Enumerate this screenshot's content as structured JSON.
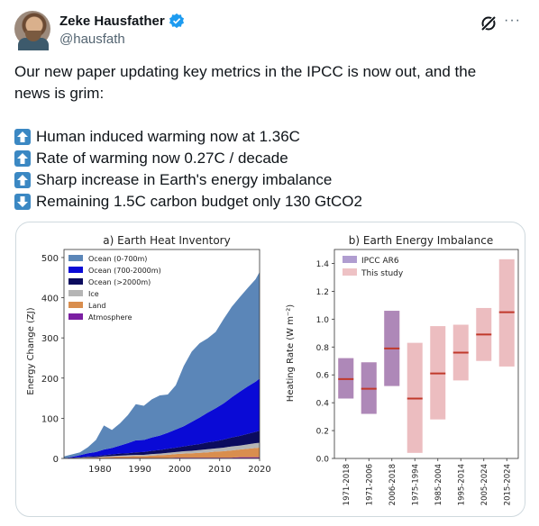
{
  "author": {
    "name": "Zeke Hausfather",
    "handle": "@hausfath"
  },
  "icons": {
    "verified": "verified-badge-icon",
    "grok": "grok-icon",
    "more": "more-icon",
    "up": "up-arrow-icon",
    "down": "down-arrow-icon"
  },
  "tweet": {
    "intro_1": "Our new paper updating key metrics in the IPCC is now out, and the",
    "intro_2": "news is grim:",
    "bullets": [
      {
        "dir": "up",
        "text": "Human induced warming now at 1.36C"
      },
      {
        "dir": "up",
        "text": "Rate of warming now 0.27C / decade"
      },
      {
        "dir": "up",
        "text": "Sharp increase in Earth's energy imbalance"
      },
      {
        "dir": "down",
        "text": "Remaining 1.5C carbon budget only 130 GtCO2"
      }
    ]
  },
  "colors": {
    "blue_accent": "#1d9bf0",
    "arrow_blue": "#3b88c3",
    "ar6": "#7c5cb0",
    "this_study": "#e29a9e",
    "median": "#c0392b"
  },
  "chart_data": [
    {
      "type": "area",
      "title": "a) Earth Heat Inventory",
      "ylabel": "Energy Change (ZJ)",
      "xlabel": "",
      "xlim": [
        1971,
        2020
      ],
      "ylim": [
        0,
        520
      ],
      "xticks": [
        1980,
        1990,
        2000,
        2010,
        2020
      ],
      "yticks": [
        0,
        100,
        200,
        300,
        400,
        500
      ],
      "legend_position": "top-left",
      "x": [
        1971,
        1973,
        1975,
        1977,
        1979,
        1981,
        1983,
        1985,
        1987,
        1989,
        1991,
        1993,
        1995,
        1997,
        1999,
        2001,
        2003,
        2005,
        2007,
        2009,
        2011,
        2013,
        2015,
        2017,
        2019,
        2020
      ],
      "series": [
        {
          "name": "Atmosphere",
          "color": "#7b1fa2",
          "values": [
            0,
            0,
            0,
            0,
            0,
            0,
            1,
            1,
            1,
            1,
            1,
            1,
            1,
            1,
            2,
            2,
            2,
            2,
            2,
            2,
            2,
            2,
            3,
            3,
            3,
            3
          ]
        },
        {
          "name": "Land",
          "color": "#d98e4e",
          "values": [
            0,
            1,
            1,
            2,
            2,
            3,
            3,
            4,
            4,
            5,
            5,
            6,
            7,
            8,
            9,
            10,
            11,
            12,
            13,
            15,
            16,
            18,
            19,
            21,
            23,
            24
          ]
        },
        {
          "name": "Ice",
          "color": "#b5b5b5",
          "values": [
            0,
            0,
            1,
            1,
            1,
            2,
            2,
            2,
            3,
            3,
            3,
            4,
            4,
            5,
            5,
            6,
            6,
            7,
            8,
            8,
            9,
            10,
            10,
            11,
            12,
            12
          ]
        },
        {
          "name": "Ocean (>2000m)",
          "color": "#0b0b5e",
          "values": [
            0,
            1,
            1,
            2,
            3,
            3,
            4,
            5,
            5,
            6,
            7,
            8,
            9,
            10,
            11,
            12,
            14,
            15,
            17,
            18,
            20,
            22,
            24,
            26,
            28,
            30
          ]
        },
        {
          "name": "Ocean (700-2000m)",
          "color": "#0a0ad6",
          "values": [
            0,
            2,
            5,
            8,
            10,
            14,
            16,
            20,
            25,
            30,
            30,
            33,
            36,
            40,
            45,
            50,
            58,
            66,
            74,
            82,
            90,
            100,
            110,
            118,
            125,
            130
          ]
        },
        {
          "name": "Ocean (0-700m)",
          "color": "#5b86b8",
          "values": [
            5,
            6,
            7,
            15,
            30,
            60,
            45,
            55,
            70,
            90,
            85,
            95,
            100,
            95,
            110,
            150,
            175,
            185,
            185,
            190,
            210,
            225,
            235,
            245,
            255,
            265
          ]
        }
      ]
    },
    {
      "type": "bar",
      "title": "b) Earth Energy Imbalance",
      "ylabel": "Heating Rate (W m⁻²)",
      "xlabel": "",
      "ylim": [
        0,
        1.5
      ],
      "yticks": [
        0.0,
        0.2,
        0.4,
        0.6,
        0.8,
        1.0,
        1.2,
        1.4
      ],
      "legend_position": "top-left",
      "legend": [
        "IPCC AR6",
        "This study"
      ],
      "categories": [
        "1971-2018",
        "1971-2006",
        "2006-2018",
        "1975-1994",
        "1985-2004",
        "1995-2014",
        "2005-2024",
        "2015-2024"
      ],
      "series": [
        {
          "name": "IPCC AR6",
          "low": [
            0.43,
            0.32,
            0.52,
            null,
            null,
            null,
            null,
            null
          ],
          "median": [
            0.57,
            0.5,
            0.79,
            null,
            null,
            null,
            null,
            null
          ],
          "high": [
            0.72,
            0.69,
            1.06,
            null,
            null,
            null,
            null,
            null
          ]
        },
        {
          "name": "This study",
          "low": [
            0.43,
            0.32,
            0.52,
            0.04,
            0.28,
            0.56,
            0.7,
            0.66
          ],
          "median": [
            0.57,
            0.5,
            0.79,
            0.43,
            0.61,
            0.76,
            0.89,
            1.05
          ],
          "high": [
            0.72,
            0.69,
            1.06,
            0.83,
            0.95,
            0.96,
            1.08,
            1.43
          ]
        }
      ]
    }
  ]
}
